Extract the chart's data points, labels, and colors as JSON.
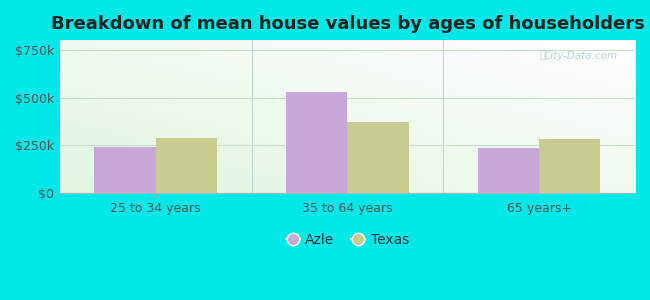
{
  "title": "Breakdown of mean house values by ages of householders",
  "categories": [
    "25 to 34 years",
    "35 to 64 years",
    "65 years+"
  ],
  "azle_values": [
    240000,
    530000,
    235000
  ],
  "texas_values": [
    290000,
    370000,
    285000
  ],
  "azle_color": "#c8a8d8",
  "texas_color": "#c8cc90",
  "azle_label": "Azle",
  "texas_label": "Texas",
  "ylim": [
    0,
    800000
  ],
  "yticks": [
    0,
    250000,
    500000,
    750000
  ],
  "ytick_labels": [
    "$0",
    "$250k",
    "$500k",
    "$750k"
  ],
  "bg_outer": "#00e8e8",
  "title_fontsize": 13,
  "bar_width": 0.32,
  "gradient_top": "#e8f8e8",
  "gradient_bottom": "#f8fff8",
  "grid_color": "#d0e8d0"
}
